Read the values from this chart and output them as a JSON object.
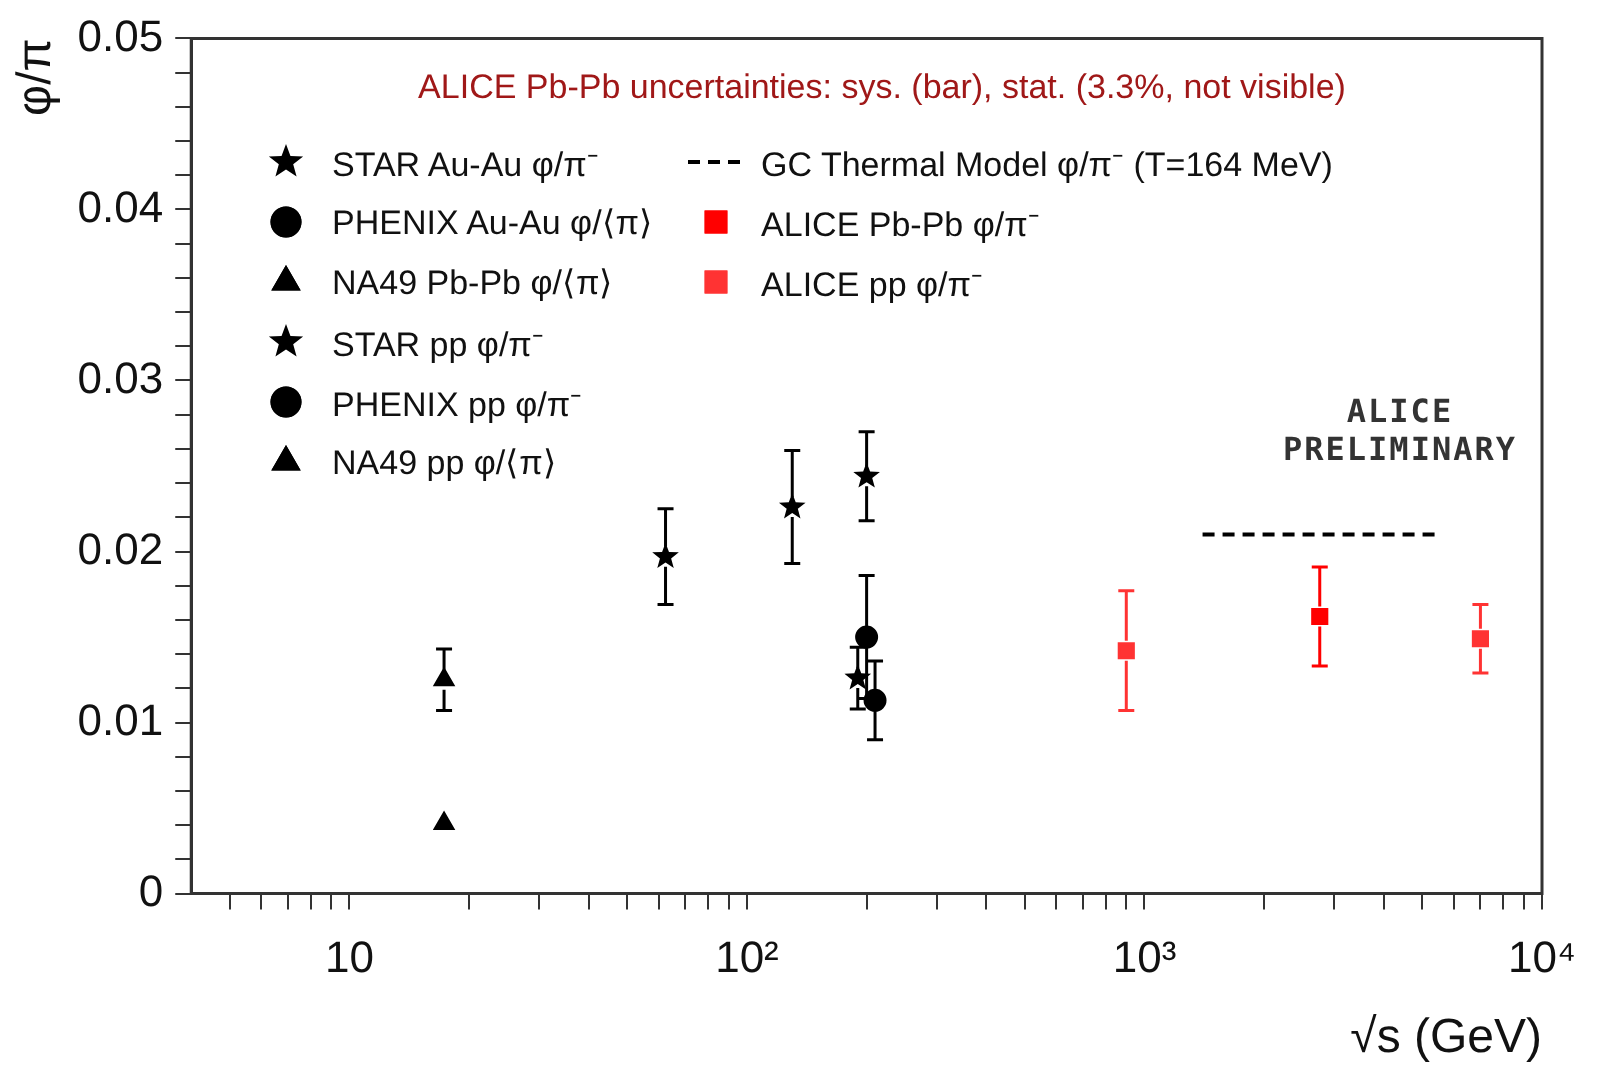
{
  "chart_data": {
    "type": "scatter",
    "xlabel": "√s (GeV)",
    "ylabel": "φ/π",
    "annotations": [
      "ALICE Pb-Pb uncertainties: sys. (bar), stat. (3.3%, not visible)",
      "ALICE PRELIMINARY"
    ],
    "log": "x",
    "grid": false,
    "legend": "top left",
    "xlim": [
      4,
      10000
    ],
    "xticks": [
      {
        "value": 5,
        "label": null
      },
      {
        "value": 6,
        "label": null
      },
      {
        "value": 7,
        "label": null
      },
      {
        "value": 8,
        "label": null
      },
      {
        "value": 9,
        "label": null
      },
      10,
      {
        "value": 20,
        "label": null
      },
      {
        "value": 30,
        "label": null
      },
      {
        "value": 40,
        "label": null
      },
      {
        "value": 50,
        "label": null
      },
      {
        "value": 60,
        "label": null
      },
      {
        "value": 70,
        "label": null
      },
      {
        "value": 80,
        "label": null
      },
      {
        "value": 90,
        "label": null
      },
      {
        "value": 100,
        "label": "10²"
      },
      {
        "value": 200,
        "label": null
      },
      {
        "value": 300,
        "label": null
      },
      {
        "value": 400,
        "label": null
      },
      {
        "value": 500,
        "label": null
      },
      {
        "value": 600,
        "label": null
      },
      {
        "value": 700,
        "label": null
      },
      {
        "value": 800,
        "label": null
      },
      {
        "value": 900,
        "label": null
      },
      {
        "value": 1000,
        "label": "10³"
      },
      {
        "value": 2000,
        "label": null
      },
      {
        "value": 3000,
        "label": null
      },
      {
        "value": 4000,
        "label": null
      },
      {
        "value": 5000,
        "label": null
      },
      {
        "value": 6000,
        "label": null
      },
      {
        "value": 7000,
        "label": null
      },
      {
        "value": 8000,
        "label": null
      },
      {
        "value": 9000,
        "label": null
      },
      {
        "value": 10000,
        "label": "10⁴"
      }
    ],
    "ylim": [
      0,
      0.05
    ],
    "yticks": [
      0,
      {
        "value": 0.002,
        "label": null
      },
      {
        "value": 0.004,
        "label": null
      },
      {
        "value": 0.006,
        "label": null
      },
      {
        "value": 0.008,
        "label": null
      },
      0.01,
      {
        "value": 0.012,
        "label": null
      },
      {
        "value": 0.014,
        "label": null
      },
      {
        "value": 0.016,
        "label": null
      },
      {
        "value": 0.018,
        "label": null
      },
      0.02,
      {
        "value": 0.022,
        "label": null
      },
      {
        "value": 0.024,
        "label": null
      },
      {
        "value": 0.026,
        "label": null
      },
      {
        "value": 0.028,
        "label": null
      },
      0.03,
      {
        "value": 0.032,
        "label": null
      },
      {
        "value": 0.034,
        "label": null
      },
      {
        "value": 0.036,
        "label": null
      },
      {
        "value": 0.038,
        "label": null
      },
      0.04,
      {
        "value": 0.042,
        "label": null
      },
      {
        "value": 0.044,
        "label": null
      },
      {
        "value": 0.046,
        "label": null
      },
      {
        "value": 0.048,
        "label": null
      },
      0.05
    ],
    "series": [
      {
        "name": "STAR Au-Au φ/π⁻",
        "color": "#000000",
        "marker": "star",
        "x": [
          62.4,
          130,
          200
        ],
        "values": [
          0.0197,
          0.0226,
          0.0244
        ],
        "errors": [
          0.0028,
          0.0033,
          0.0026
        ]
      },
      {
        "name": "PHENIX Au-Au φ/⟨π⟩",
        "color": "#000000",
        "marker": "circle",
        "x": [
          200
        ],
        "values": [
          0.015
        ],
        "errors": [
          0.0036
        ]
      },
      {
        "name": "NA49 Pb-Pb φ/⟨π⟩",
        "color": "#000000",
        "marker": "triangle",
        "x": [
          17.3
        ],
        "values": [
          0.0125
        ],
        "errors": [
          0.0018
        ]
      },
      {
        "name": "STAR pp φ/π⁻",
        "color": "#000000",
        "marker": "star",
        "x": [
          190
        ],
        "values": [
          0.0126
        ],
        "errors": [
          0.0018
        ]
      },
      {
        "name": "PHENIX pp φ/π⁻",
        "color": "#000000",
        "marker": "circle",
        "x": [
          210
        ],
        "values": [
          0.0113
        ],
        "errors": [
          0.0023
        ]
      },
      {
        "name": "NA49 pp φ/⟨π⟩",
        "color": "#000000",
        "marker": "triangle",
        "x": [
          17.3
        ],
        "values": [
          0.0041
        ],
        "errors": [
          null
        ]
      },
      {
        "name": "GC Thermal Model φ/π⁻ (T=164 MeV)",
        "type": "line",
        "color": "#000000",
        "marker": "none",
        "line_style": "dashed",
        "x": [
          1400,
          5600
        ],
        "values": [
          0.021,
          0.021
        ]
      },
      {
        "name": "ALICE Pb-Pb φ/π⁻",
        "color": "#ff0000",
        "marker": "square",
        "x": [
          2760
        ],
        "values": [
          0.0162
        ],
        "errors": [
          0.0029
        ]
      },
      {
        "name": "ALICE pp φ/π⁻",
        "color": "#ff3333",
        "marker": "square",
        "x": [
          900,
          7000
        ],
        "values": [
          0.0142,
          0.0149
        ],
        "errors": [
          0.0035,
          0.002
        ]
      }
    ]
  }
}
